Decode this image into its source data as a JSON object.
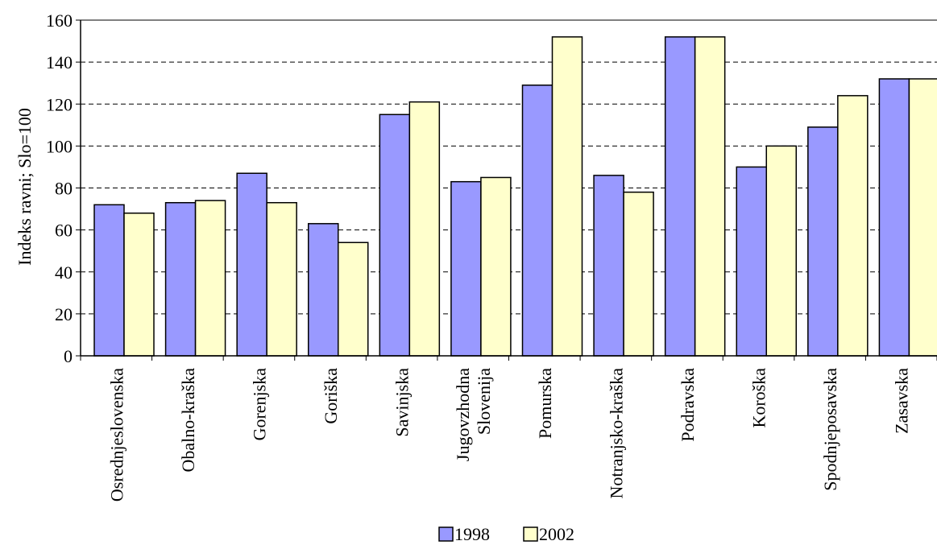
{
  "chart_data": {
    "type": "bar",
    "title": "",
    "xlabel": "",
    "ylabel": "Indeks ravni; Slo=100",
    "ylim": [
      0,
      160
    ],
    "yticks": [
      0,
      20,
      40,
      60,
      80,
      100,
      120,
      140,
      160
    ],
    "grid": "horizontal dashed",
    "legend_position": "bottom",
    "categories": [
      [
        "Osrednjeslovenska"
      ],
      [
        "Obalno-kraška"
      ],
      [
        "Gorenjska"
      ],
      [
        "Goriška"
      ],
      [
        "Savinjska"
      ],
      [
        "Jugovzhodna",
        "Slovenija"
      ],
      [
        "Pomurska"
      ],
      [
        "Notranjsko-kraška"
      ],
      [
        "Podravska"
      ],
      [
        "Koroška"
      ],
      [
        "Spodnjeposavska"
      ],
      [
        "Zasavska"
      ]
    ],
    "series": [
      {
        "name": "1998",
        "color": "#9999ff",
        "values": [
          72,
          73,
          87,
          63,
          115,
          83,
          129,
          86,
          152,
          90,
          109,
          132
        ]
      },
      {
        "name": "2002",
        "color": "#ffffcc",
        "values": [
          68,
          74,
          73,
          54,
          121,
          85,
          152,
          78,
          152,
          100,
          124,
          132
        ]
      }
    ]
  }
}
